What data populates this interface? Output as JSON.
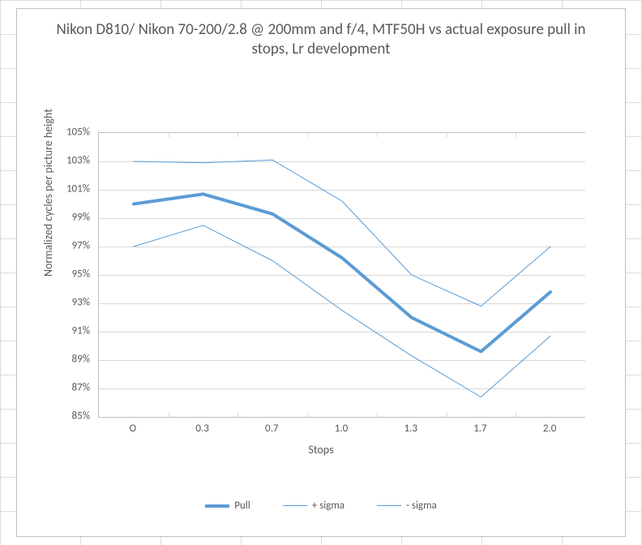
{
  "chart": {
    "type": "line",
    "title": "Nikon D810/ Nikon 70-200/2.8 @ 200mm and f/4, MTF50H vs actual exposure pull in stops, Lr development",
    "title_fontsize": 19,
    "title_color": "#595959",
    "xaxis_label": "Stops",
    "yaxis_label": "Normalized cycles per picture height",
    "label_fontsize": 14,
    "label_color": "#595959",
    "categories": [
      "O",
      "0.3",
      "0.7",
      "1.0",
      "1.3",
      "1.7",
      "2.0"
    ],
    "ylim": [
      0.85,
      1.05
    ],
    "yticks": [
      0.85,
      0.87,
      0.89,
      0.91,
      0.93,
      0.95,
      0.97,
      0.99,
      1.01,
      1.03,
      1.05
    ],
    "ytick_labels": [
      "85%",
      "87%",
      "89%",
      "91%",
      "93%",
      "95%",
      "97%",
      "99%",
      "101%",
      "103%",
      "105%"
    ],
    "background_color": "#ffffff",
    "border_color": "#bfbfbf",
    "grid_color": "#d8d8d8",
    "series": [
      {
        "name": "Pull",
        "color": "#5b9bd5",
        "width": 4,
        "values": [
          1.0,
          1.007,
          0.993,
          0.962,
          0.92,
          0.896,
          0.938
        ]
      },
      {
        "name": "+ sigma",
        "color": "#5b9bd5",
        "width": 1,
        "values": [
          1.03,
          1.029,
          1.031,
          1.002,
          0.95,
          0.928,
          0.97
        ]
      },
      {
        "name": "- sigma",
        "color": "#5b9bd5",
        "width": 1,
        "values": [
          0.97,
          0.985,
          0.96,
          0.925,
          0.893,
          0.864,
          0.907
        ]
      }
    ],
    "legend": {
      "position": "bottom",
      "items": [
        "Pull",
        "+ sigma",
        "- sigma"
      ]
    },
    "spreadsheet_bg": {
      "cell_border": "#dcdcdc"
    }
  }
}
